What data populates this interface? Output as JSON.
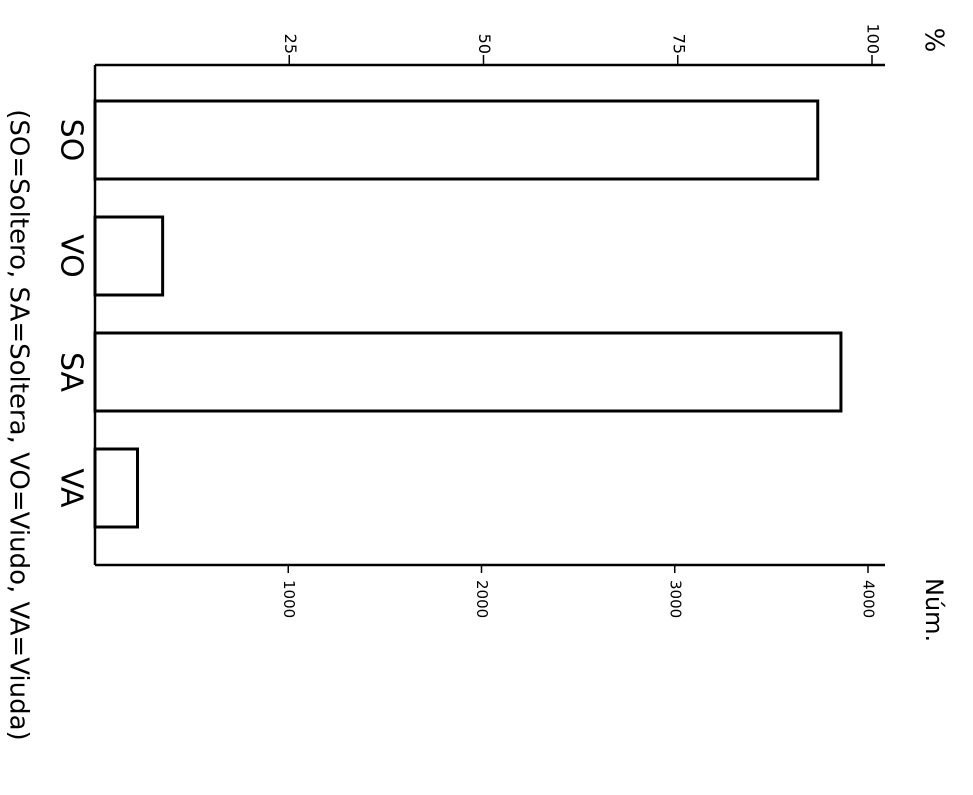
{
  "chart_data": {
    "type": "bar",
    "categories": [
      "SO",
      "VO",
      "SA",
      "VA"
    ],
    "values": [
      3740,
      350,
      3860,
      220
    ],
    "ylabel": "Núm.",
    "ylim": [
      0,
      4000
    ],
    "yticks": [
      1000,
      2000,
      3000,
      4000
    ],
    "y2label": "%",
    "y2lim": [
      0,
      100
    ],
    "y2ticks": [
      25,
      50,
      75,
      100
    ],
    "annotation": "(SO=Soltero, SA=Soltera, VO=Viudo, VA=Viuda)",
    "color": "#ffffff",
    "edgecolor": "#000000"
  }
}
